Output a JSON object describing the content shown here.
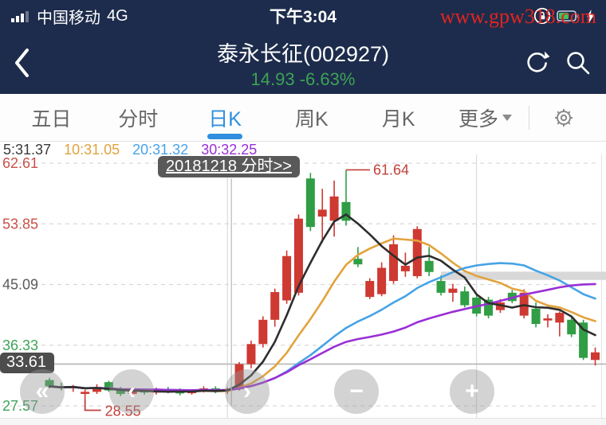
{
  "status_bar": {
    "carrier": "中国移动",
    "network": "4G",
    "time": "下午3:04",
    "watermark": "www.gpw318.com"
  },
  "header": {
    "title": "泰永长征(002927)",
    "price": "14.93",
    "change": "-6.63%",
    "price_color": "#3da255"
  },
  "tabs": [
    {
      "label": "五日",
      "active": false
    },
    {
      "label": "分时",
      "active": false
    },
    {
      "label": "日K",
      "active": true
    },
    {
      "label": "周K",
      "active": false
    },
    {
      "label": "月K",
      "active": false
    },
    {
      "label": "更多",
      "active": false,
      "has_dropdown": true
    }
  ],
  "legend": [
    {
      "text": "5:31.37",
      "color": "#3a3a3a"
    },
    {
      "text": "10:31.05",
      "color": "#e2a33c"
    },
    {
      "text": "20:31.32",
      "color": "#47a3e6"
    },
    {
      "text": "30:32.25",
      "color": "#9a2fd6"
    }
  ],
  "tooltip": {
    "text": "20181218 分时>>"
  },
  "controls": [
    {
      "name": "pan-fast-left",
      "glyph": "«"
    },
    {
      "name": "pan-left",
      "glyph": "‹"
    },
    {
      "name": "pan-right",
      "glyph": "›"
    },
    {
      "name": "zoom-out",
      "glyph": "−"
    },
    {
      "name": "zoom-in",
      "glyph": "+"
    }
  ],
  "chart_data": {
    "type": "candlestick",
    "title": "泰永长征(002927) 日K",
    "up_color": "#ce3931",
    "down_color": "#2f9e44",
    "y_axis": {
      "ticks": [
        {
          "label": "62.61",
          "price": 62.61,
          "color": "#c8504a"
        },
        {
          "label": "53.85",
          "price": 53.85,
          "color": "#c8504a"
        },
        {
          "label": "45.09",
          "price": 45.09,
          "color": "#5a5a5a"
        },
        {
          "label": "36.33",
          "price": 36.33,
          "color": "#3fa35a"
        },
        {
          "label": "27.57",
          "price": 27.57,
          "color": "#3fa35a"
        }
      ],
      "max": 62.61,
      "min": 27.57
    },
    "candles": [
      [
        31.3,
        31.6,
        30.1,
        30.4
      ],
      [
        30.4,
        30.9,
        29.8,
        30.1
      ],
      [
        30.1,
        30.6,
        29.6,
        30.4
      ],
      [
        29.3,
        29.9,
        28.55,
        29.6
      ],
      [
        29.6,
        30.7,
        29.3,
        30.3
      ],
      [
        31.0,
        31.2,
        29.6,
        29.8
      ],
      [
        29.8,
        30.3,
        29.0,
        29.3
      ],
      [
        29.3,
        30.0,
        29.0,
        29.8
      ],
      [
        29.8,
        30.1,
        29.2,
        29.5
      ],
      [
        29.5,
        30.2,
        29.2,
        29.9
      ],
      [
        29.9,
        30.3,
        29.4,
        29.6
      ],
      [
        29.6,
        30.1,
        29.1,
        29.4
      ],
      [
        29.4,
        30.0,
        29.2,
        29.8
      ],
      [
        29.8,
        30.4,
        29.5,
        30.1
      ],
      [
        30.1,
        30.4,
        29.4,
        29.7
      ],
      [
        29.7,
        30.2,
        29.3,
        30.0
      ],
      [
        30.0,
        33.9,
        29.8,
        33.6
      ],
      [
        33.6,
        37.0,
        33.0,
        36.5
      ],
      [
        36.5,
        40.5,
        36.0,
        40.0
      ],
      [
        40.0,
        44.5,
        39.0,
        44.0
      ],
      [
        42.8,
        50.0,
        42.3,
        49.2
      ],
      [
        43.9,
        55.2,
        43.5,
        54.6
      ],
      [
        60.4,
        61.2,
        52.8,
        53.4
      ],
      [
        54.9,
        58.9,
        51.1,
        55.9
      ],
      [
        54.3,
        60.1,
        52.0,
        57.8
      ],
      [
        57.0,
        61.64,
        53.6,
        54.3
      ],
      [
        48.8,
        50.5,
        47.6,
        48.0
      ],
      [
        43.3,
        46.0,
        43.0,
        45.6
      ],
      [
        43.7,
        48.3,
        43.4,
        47.5
      ],
      [
        45.6,
        52.2,
        45.2,
        50.9
      ],
      [
        47.0,
        49.7,
        46.2,
        47.8
      ],
      [
        46.3,
        53.5,
        46.0,
        53.1
      ],
      [
        48.5,
        50.5,
        46.3,
        46.9
      ],
      [
        45.6,
        46.4,
        43.5,
        43.9
      ],
      [
        43.9,
        45.2,
        42.6,
        44.5
      ],
      [
        44.1,
        44.8,
        41.8,
        42.1
      ],
      [
        43.2,
        43.8,
        40.5,
        40.9
      ],
      [
        42.9,
        43.3,
        40.2,
        40.6
      ],
      [
        41.4,
        43.0,
        41.0,
        42.5
      ],
      [
        43.9,
        44.3,
        42.4,
        42.7
      ],
      [
        40.6,
        44.4,
        40.2,
        43.9
      ],
      [
        41.6,
        42.5,
        38.9,
        39.4
      ],
      [
        39.9,
        40.8,
        38.9,
        40.2
      ],
      [
        39.6,
        41.2,
        37.6,
        41.0
      ],
      [
        40.0,
        40.5,
        37.5,
        37.9
      ],
      [
        39.6,
        40.0,
        34.2,
        34.5
      ],
      [
        34.2,
        36.0,
        33.4,
        35.3
      ]
    ],
    "ma_lines": [
      {
        "period": 10,
        "color": "#e2a33c"
      },
      {
        "period": 20,
        "color": "#47a3e6"
      },
      {
        "period": 30,
        "color": "#9a2fd6"
      },
      {
        "period": 5,
        "color": "#2e2e2e"
      }
    ],
    "crosshair_index": 15,
    "v_gridline_indices": [
      15,
      36
    ],
    "highlight_band": {
      "from_price": 46.95,
      "to_price": 45.75,
      "from_index": 33,
      "color": "#d8d8d8"
    },
    "price_marker": {
      "label": "33.61",
      "price": 33.61,
      "line_color": "#b5b5b5"
    },
    "annotations": [
      {
        "type": "high",
        "label": "61.64",
        "price": 61.64,
        "index": 25,
        "color": "#c0403a"
      },
      {
        "type": "low",
        "label": "28.55",
        "price": 28.55,
        "index": 3,
        "color": "#c0403a"
      }
    ]
  }
}
